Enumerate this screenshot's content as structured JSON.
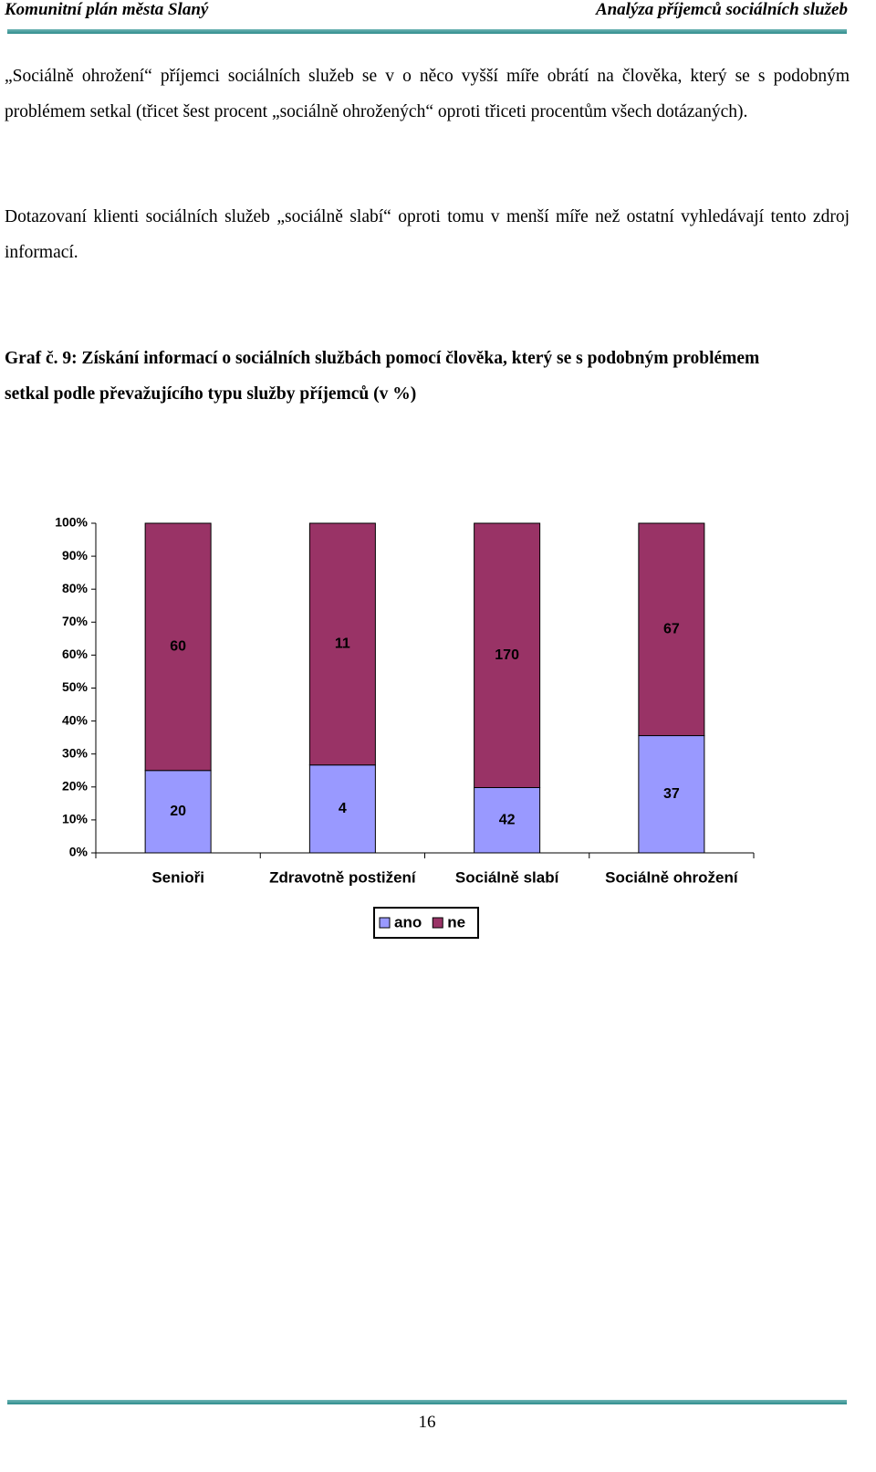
{
  "header": {
    "left": "Komunitní plán města Slaný",
    "right": "Analýza příjemců sociálních služeb"
  },
  "paragraphs": [
    "„Sociálně ohrožení“ příjemci sociálních služeb se v o něco vyšší míře obrátí na člověka, který se s podobným problémem setkal (třicet šest procent „sociálně ohrožených“ oproti třiceti procentům všech dotázaných).",
    "Dotazovaní klienti sociálních služeb „sociálně slabí“ oproti tomu v menší míře než ostatní vyhledávají tento zdroj informací."
  ],
  "caption": "Graf č. 9: Získání informací o sociálních službách pomocí člověka, který se s podobným problémem setkal podle převažujícího typu služby příjemců (v %)",
  "chart_data": {
    "type": "bar",
    "stacked": true,
    "normalized": true,
    "categories": [
      "Senioři",
      "Zdravotně postižení",
      "Sociálně slabí",
      "Sociálně ohrožení"
    ],
    "series": [
      {
        "name": "ano",
        "color": "#9999ff",
        "values": [
          20,
          4,
          42,
          37
        ]
      },
      {
        "name": "ne",
        "color": "#993366",
        "values": [
          60,
          11,
          170,
          67
        ]
      }
    ],
    "ylim": [
      0,
      100
    ],
    "yticks": [
      {
        "value": 0,
        "label": "0%"
      },
      {
        "value": 10,
        "label": "10%"
      },
      {
        "value": 20,
        "label": "20%"
      },
      {
        "value": 30,
        "label": "30%"
      },
      {
        "value": 40,
        "label": "40%"
      },
      {
        "value": 50,
        "label": "50%"
      },
      {
        "value": 60,
        "label": "60%"
      },
      {
        "value": 70,
        "label": "70%"
      },
      {
        "value": 80,
        "label": "80%"
      },
      {
        "value": 90,
        "label": "90%"
      },
      {
        "value": 100,
        "label": "100%"
      }
    ]
  },
  "page_number": "16"
}
